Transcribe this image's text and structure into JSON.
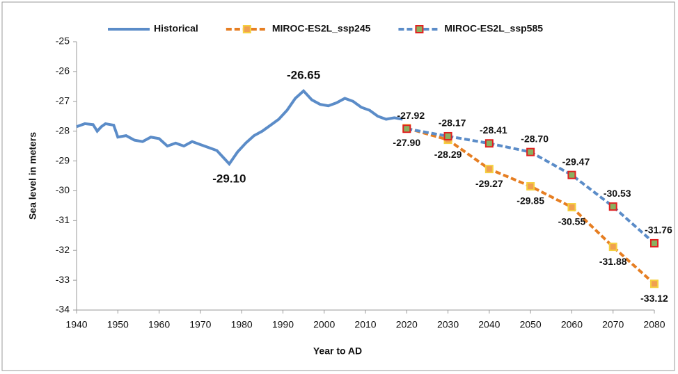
{
  "chart_data": {
    "type": "line",
    "x_label": "Year to AD",
    "y_label": "Sea level in meters",
    "xlim": [
      1940,
      2080
    ],
    "xticks": [
      1940,
      1950,
      1960,
      1970,
      1980,
      1990,
      2000,
      2010,
      2020,
      2030,
      2040,
      2050,
      2060,
      2070,
      2080
    ],
    "ylim": [
      -34,
      -25
    ],
    "yticks": [
      -25,
      -26,
      -27,
      -28,
      -29,
      -30,
      -31,
      -32,
      -33,
      -34
    ],
    "series": [
      {
        "name": "Historical",
        "color": "#5b8cc8",
        "dashed": false,
        "x": [
          1940,
          1942,
          1944,
          1945,
          1946,
          1947,
          1949,
          1950,
          1952,
          1954,
          1956,
          1958,
          1960,
          1962,
          1964,
          1966,
          1968,
          1970,
          1972,
          1974,
          1976,
          1977,
          1979,
          1981,
          1983,
          1985,
          1987,
          1989,
          1991,
          1993,
          1995,
          1997,
          1999,
          2001,
          2003,
          2005,
          2007,
          2009,
          2011,
          2013,
          2015,
          2017,
          2019
        ],
        "values": [
          -27.85,
          -27.75,
          -27.78,
          -28.0,
          -27.85,
          -27.75,
          -27.8,
          -28.2,
          -28.15,
          -28.3,
          -28.35,
          -28.2,
          -28.25,
          -28.5,
          -28.4,
          -28.5,
          -28.35,
          -28.45,
          -28.55,
          -28.65,
          -28.95,
          -29.1,
          -28.7,
          -28.4,
          -28.15,
          -28.0,
          -27.8,
          -27.6,
          -27.3,
          -26.9,
          -26.65,
          -26.95,
          -27.1,
          -27.15,
          -27.05,
          -26.9,
          -27.0,
          -27.2,
          -27.3,
          -27.5,
          -27.6,
          -27.55,
          -27.6
        ],
        "value_labels": [
          null,
          null,
          null,
          null,
          null,
          null,
          null,
          null,
          null,
          null,
          null,
          null,
          null,
          null,
          null,
          null,
          null,
          null,
          null,
          null,
          null,
          "-29.10",
          null,
          null,
          null,
          null,
          null,
          null,
          null,
          null,
          "-26.65",
          null,
          null,
          null,
          null,
          null,
          null,
          null,
          null,
          null,
          null,
          null,
          null
        ]
      },
      {
        "name": "MIROC-ES2L_ssp245",
        "color": "#e67e22",
        "dashed": true,
        "marker_fill": "#f0a050",
        "marker_edge": "#f5d040",
        "x": [
          2020,
          2030,
          2040,
          2050,
          2060,
          2070,
          2080
        ],
        "values": [
          -27.9,
          -28.29,
          -29.27,
          -29.85,
          -30.55,
          -31.88,
          -33.12
        ],
        "value_labels": [
          "-27.90",
          "-28.29",
          "-29.27",
          "-29.85",
          "-30.55",
          "-31.88",
          "-33.12"
        ]
      },
      {
        "name": "MIROC-ES2L_ssp585",
        "color": "#5b8cc8",
        "dashed": true,
        "marker_fill": "#8ab060",
        "marker_edge": "#e02020",
        "x": [
          2020,
          2030,
          2040,
          2050,
          2060,
          2070,
          2080
        ],
        "values": [
          -27.92,
          -28.17,
          -28.41,
          -28.7,
          -29.47,
          -30.53,
          -31.76
        ],
        "value_labels": [
          "-27.92",
          "-28.17",
          "-28.41",
          "-28.70",
          "-29.47",
          "-30.53",
          "-31.76"
        ]
      }
    ]
  }
}
